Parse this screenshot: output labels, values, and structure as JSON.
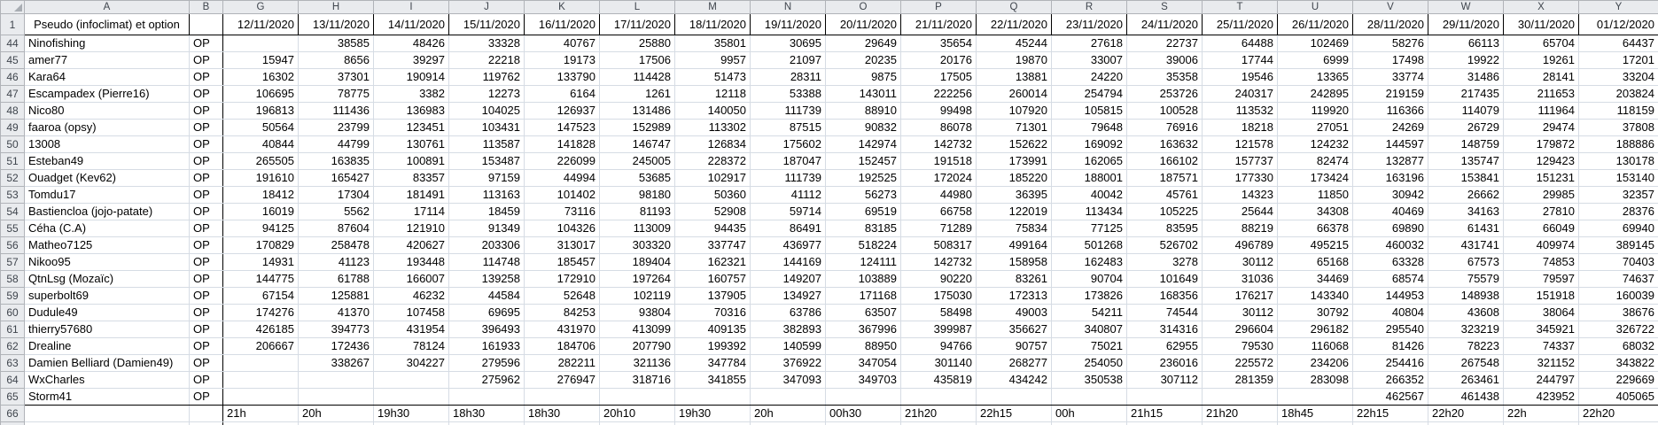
{
  "sheet": {
    "corner_label": "",
    "col_letters": [
      "A",
      "B",
      "G",
      "H",
      "I",
      "J",
      "K",
      "L",
      "M",
      "N",
      "O",
      "P",
      "Q",
      "R",
      "S",
      "T",
      "U",
      "V",
      "W",
      "X",
      "Y"
    ],
    "header_row": {
      "num": "1",
      "label": "Pseudo (infoclimat) et option",
      "dates": [
        "12/11/2020",
        "13/11/2020",
        "14/11/2020",
        "15/11/2020",
        "16/11/2020",
        "17/11/2020",
        "18/11/2020",
        "19/11/2020",
        "20/11/2020",
        "21/11/2020",
        "22/11/2020",
        "23/11/2020",
        "24/11/2020",
        "25/11/2020",
        "26/11/2020",
        "28/11/2020",
        "29/11/2020",
        "30/11/2020",
        "01/12/2020"
      ]
    },
    "rows": [
      {
        "num": "44",
        "name": "Ninofishing",
        "option": "OP",
        "values": [
          "",
          "38585",
          "48426",
          "33328",
          "40767",
          "25880",
          "35801",
          "30695",
          "29649",
          "35654",
          "45244",
          "27618",
          "22737",
          "64488",
          "102469",
          "58276",
          "66113",
          "65704",
          "64437"
        ]
      },
      {
        "num": "45",
        "name": "amer77",
        "option": "OP",
        "values": [
          "15947",
          "8656",
          "39297",
          "22218",
          "19173",
          "17506",
          "9957",
          "21097",
          "20235",
          "20176",
          "19870",
          "33007",
          "39006",
          "17744",
          "6999",
          "17498",
          "19922",
          "19261",
          "17201"
        ]
      },
      {
        "num": "46",
        "name": "Kara64",
        "option": "OP",
        "values": [
          "16302",
          "37301",
          "190914",
          "119762",
          "133790",
          "114428",
          "51473",
          "28311",
          "9875",
          "17505",
          "13881",
          "24220",
          "35358",
          "19546",
          "13365",
          "33774",
          "31486",
          "28141",
          "33204"
        ]
      },
      {
        "num": "47",
        "name": "Escampadex (Pierre16)",
        "option": "OP",
        "values": [
          "106695",
          "78775",
          "3382",
          "12273",
          "6164",
          "1261",
          "12118",
          "53388",
          "143011",
          "222256",
          "260014",
          "254794",
          "253726",
          "240317",
          "242895",
          "219159",
          "217435",
          "211653",
          "203824"
        ]
      },
      {
        "num": "48",
        "name": "Nico80",
        "option": "OP",
        "values": [
          "196813",
          "111436",
          "136983",
          "104025",
          "126937",
          "131486",
          "140050",
          "111739",
          "88910",
          "99498",
          "107920",
          "105815",
          "100528",
          "113532",
          "119920",
          "116366",
          "114079",
          "111964",
          "118159"
        ]
      },
      {
        "num": "49",
        "name": "faaroa (opsy)",
        "option": "OP",
        "values": [
          "50564",
          "23799",
          "123451",
          "103431",
          "147523",
          "152989",
          "113302",
          "87515",
          "90832",
          "86078",
          "71301",
          "79648",
          "76916",
          "18218",
          "27051",
          "24269",
          "26729",
          "29474",
          "37808"
        ]
      },
      {
        "num": "50",
        "name": "13008",
        "option": "OP",
        "values": [
          "40844",
          "44799",
          "130761",
          "113587",
          "141828",
          "146747",
          "126834",
          "175602",
          "142974",
          "142732",
          "152622",
          "169092",
          "163632",
          "121578",
          "124232",
          "144597",
          "148759",
          "179872",
          "188886"
        ]
      },
      {
        "num": "51",
        "name": "Esteban49",
        "option": "OP",
        "values": [
          "265505",
          "163835",
          "100891",
          "153487",
          "226099",
          "245005",
          "228372",
          "187047",
          "152457",
          "191518",
          "173991",
          "162065",
          "166102",
          "157737",
          "82474",
          "132877",
          "135747",
          "129423",
          "130178"
        ]
      },
      {
        "num": "52",
        "name": "Ouadget (Kev62)",
        "option": "OP",
        "values": [
          "191610",
          "165427",
          "83357",
          "97159",
          "44994",
          "53685",
          "102917",
          "111739",
          "192525",
          "172024",
          "185220",
          "188001",
          "187571",
          "177330",
          "173424",
          "163196",
          "153841",
          "151231",
          "153140"
        ]
      },
      {
        "num": "53",
        "name": "Tomdu17",
        "option": "OP",
        "values": [
          "18412",
          "17304",
          "181491",
          "113163",
          "101402",
          "98180",
          "50360",
          "41112",
          "56273",
          "44980",
          "36395",
          "40042",
          "45761",
          "14323",
          "11850",
          "30942",
          "26662",
          "29985",
          "32357"
        ]
      },
      {
        "num": "54",
        "name": "Bastiencloa (jojo-patate)",
        "option": "OP",
        "values": [
          "16019",
          "5562",
          "17114",
          "18459",
          "73116",
          "81193",
          "52908",
          "59714",
          "69519",
          "66758",
          "122019",
          "113434",
          "105225",
          "25644",
          "34308",
          "40469",
          "34163",
          "27810",
          "28376"
        ]
      },
      {
        "num": "55",
        "name": "Céha (C.A)",
        "option": "OP",
        "values": [
          "94125",
          "87604",
          "121910",
          "91349",
          "104326",
          "113009",
          "94435",
          "86491",
          "83185",
          "71289",
          "75834",
          "77125",
          "83595",
          "88219",
          "66378",
          "69890",
          "61431",
          "66049",
          "69940"
        ]
      },
      {
        "num": "56",
        "name": "Matheo7125",
        "option": "OP",
        "values": [
          "170829",
          "258478",
          "420627",
          "203306",
          "313017",
          "303320",
          "337747",
          "436977",
          "518224",
          "508317",
          "499164",
          "501268",
          "526702",
          "496789",
          "495215",
          "460032",
          "431741",
          "409974",
          "389145"
        ]
      },
      {
        "num": "57",
        "name": "Nikoo95",
        "option": "OP",
        "values": [
          "14931",
          "41123",
          "193448",
          "114748",
          "185457",
          "189404",
          "162321",
          "144169",
          "124111",
          "142732",
          "158958",
          "162483",
          "3278",
          "30112",
          "65168",
          "63328",
          "67573",
          "74853",
          "70403"
        ]
      },
      {
        "num": "58",
        "name": "QtnLsg (Mozaïc)",
        "option": "OP",
        "values": [
          "144775",
          "61788",
          "166007",
          "139258",
          "172910",
          "197264",
          "160757",
          "149207",
          "103889",
          "90220",
          "83261",
          "90704",
          "101649",
          "31036",
          "34469",
          "68574",
          "75579",
          "79597",
          "74637"
        ]
      },
      {
        "num": "59",
        "name": "superbolt69",
        "option": "OP",
        "values": [
          "67154",
          "125881",
          "46232",
          "44584",
          "52648",
          "102119",
          "137905",
          "134927",
          "171168",
          "175030",
          "172313",
          "173826",
          "168356",
          "176217",
          "143340",
          "144953",
          "148938",
          "151918",
          "160039"
        ]
      },
      {
        "num": "60",
        "name": "Dudule49",
        "option": "OP",
        "values": [
          "174276",
          "41370",
          "107458",
          "69695",
          "84253",
          "93804",
          "70316",
          "63786",
          "63507",
          "58498",
          "49003",
          "54211",
          "74544",
          "30112",
          "30792",
          "40804",
          "43608",
          "38064",
          "38676"
        ]
      },
      {
        "num": "61",
        "name": "thierry57680",
        "option": "OP",
        "values": [
          "426185",
          "394773",
          "431954",
          "396493",
          "431970",
          "413099",
          "409135",
          "382893",
          "367996",
          "399987",
          "356627",
          "340807",
          "314316",
          "296604",
          "296182",
          "295540",
          "323219",
          "345921",
          "326722"
        ]
      },
      {
        "num": "62",
        "name": "Drealine",
        "option": "OP",
        "values": [
          "206667",
          "172436",
          "78124",
          "161933",
          "184706",
          "207790",
          "199392",
          "140599",
          "88950",
          "94766",
          "90757",
          "75021",
          "62955",
          "79530",
          "116068",
          "81426",
          "78223",
          "74337",
          "68032"
        ]
      },
      {
        "num": "63",
        "name": "Damien Belliard (Damien49)",
        "option": "OP",
        "values": [
          "",
          "338267",
          "304227",
          "279596",
          "282211",
          "321136",
          "347784",
          "376922",
          "347054",
          "301140",
          "268277",
          "254050",
          "236016",
          "225572",
          "234206",
          "254416",
          "267548",
          "321152",
          "343822"
        ]
      },
      {
        "num": "64",
        "name": "WxCharles",
        "option": "OP",
        "values": [
          "",
          "",
          "",
          "275962",
          "276947",
          "318716",
          "341855",
          "347093",
          "349703",
          "435819",
          "434242",
          "350538",
          "307112",
          "281359",
          "283098",
          "266352",
          "263461",
          "244797",
          "229669"
        ]
      },
      {
        "num": "65",
        "name": "Storm41",
        "option": "OP",
        "values": [
          "",
          "",
          "",
          "",
          "",
          "",
          "",
          "",
          "",
          "",
          "",
          "",
          "",
          "",
          "",
          "462567",
          "461438",
          "423952",
          "405065"
        ]
      }
    ],
    "times_row": {
      "num": "66",
      "name": "",
      "option": "",
      "values": [
        "21h",
        "20h",
        "19h30",
        "18h30",
        "18h30",
        "20h10",
        "19h30",
        "20h",
        "00h30",
        "21h20",
        "22h15",
        "00h",
        "21h15",
        "21h20",
        "18h45",
        "22h15",
        "22h20",
        "22h",
        "22h20"
      ]
    }
  }
}
